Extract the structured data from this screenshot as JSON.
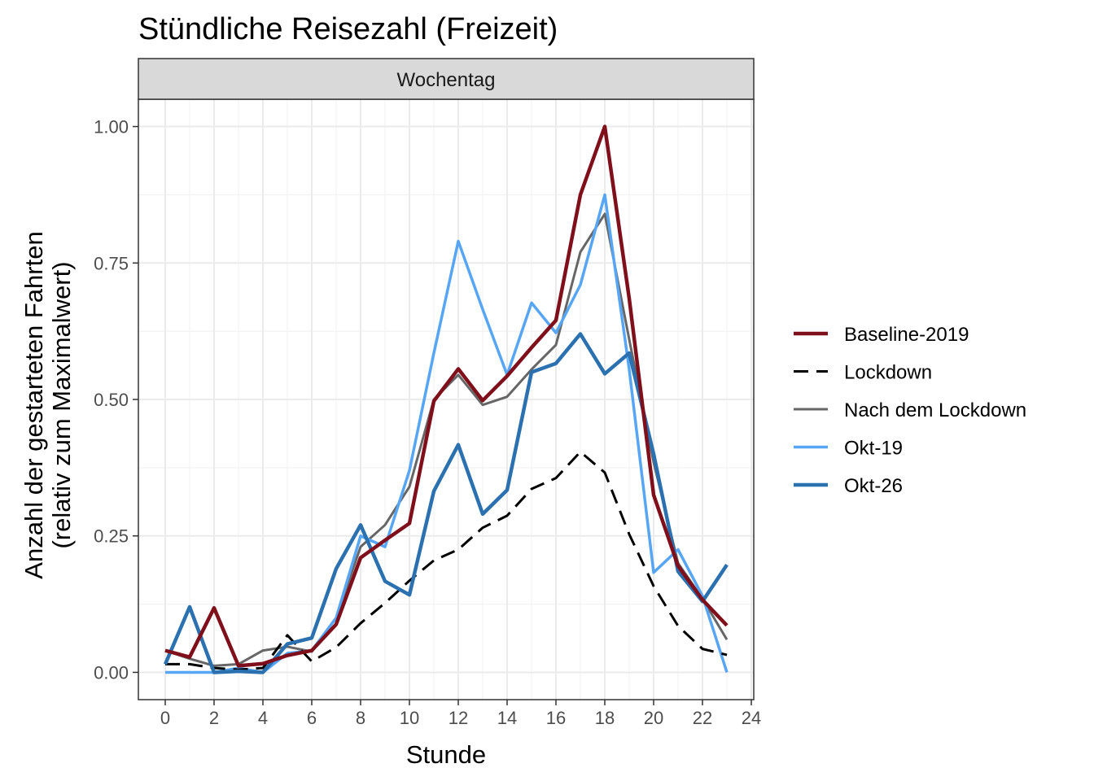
{
  "chart_data": {
    "type": "line",
    "title": "Stündliche Reisezahl (Freizeit)",
    "facet_label": "Wochentag",
    "xlabel": "Stunde",
    "ylabel_line1": "Anzahl der gestarteten Fahrten",
    "ylabel_line2": "(relativ zum Maximalwert)",
    "xlim": [
      -1.1,
      24.1
    ],
    "ylim": [
      -0.05,
      1.05
    ],
    "x_ticks": [
      0,
      2,
      4,
      6,
      8,
      10,
      12,
      14,
      16,
      18,
      20,
      22,
      24
    ],
    "y_ticks": [
      0.0,
      0.25,
      0.5,
      0.75,
      1.0
    ],
    "y_tick_labels": [
      "0.00",
      "0.25",
      "0.50",
      "0.75",
      "1.00"
    ],
    "grid": true,
    "legend_position": "right",
    "x": [
      0,
      1,
      2,
      3,
      4,
      5,
      6,
      7,
      8,
      9,
      10,
      11,
      12,
      13,
      14,
      15,
      16,
      17,
      18,
      19,
      20,
      21,
      22,
      23
    ],
    "series": [
      {
        "name": "Nach dem Lockdown",
        "color": "#666666",
        "width": 3,
        "dash": "",
        "values": [
          0.04,
          0.025,
          0.012,
          0.015,
          0.04,
          0.047,
          0.038,
          0.1,
          0.23,
          0.27,
          0.34,
          0.5,
          0.545,
          0.49,
          0.505,
          0.555,
          0.6,
          0.77,
          0.84,
          0.61,
          0.385,
          0.2,
          0.135,
          0.06
        ]
      },
      {
        "name": "Okt-19",
        "color": "#56a6f5",
        "width": 3.5,
        "dash": "",
        "values": [
          0.0,
          0.0,
          0.0,
          0.008,
          0.0,
          0.035,
          0.04,
          0.1,
          0.25,
          0.23,
          0.37,
          0.585,
          0.79,
          0.665,
          0.545,
          0.677,
          0.622,
          0.71,
          0.875,
          0.555,
          0.183,
          0.225,
          0.14,
          0.0
        ]
      },
      {
        "name": "Lockdown",
        "color": "#000000",
        "width": 3,
        "dash": "18,10",
        "values": [
          0.015,
          0.015,
          0.008,
          0.005,
          0.008,
          0.068,
          0.02,
          0.046,
          0.09,
          0.127,
          0.168,
          0.205,
          0.225,
          0.265,
          0.287,
          0.336,
          0.356,
          0.404,
          0.366,
          0.253,
          0.158,
          0.085,
          0.043,
          0.032
        ]
      },
      {
        "name": "Okt-26",
        "color": "#2b71b0",
        "width": 4.5,
        "dash": "",
        "values": [
          0.015,
          0.12,
          0.0,
          0.002,
          0.0,
          0.052,
          0.063,
          0.19,
          0.27,
          0.167,
          0.142,
          0.332,
          0.417,
          0.29,
          0.334,
          0.55,
          0.566,
          0.62,
          0.547,
          0.585,
          0.4,
          0.185,
          0.13,
          0.197
        ]
      },
      {
        "name": "Baseline-2019",
        "color": "#7f0f1a",
        "width": 4.5,
        "dash": "",
        "values": [
          0.04,
          0.028,
          0.118,
          0.012,
          0.016,
          0.031,
          0.04,
          0.088,
          0.21,
          0.242,
          0.273,
          0.497,
          0.556,
          0.498,
          0.543,
          0.595,
          0.645,
          0.875,
          1.0,
          0.685,
          0.325,
          0.195,
          0.133,
          0.086
        ]
      }
    ],
    "legend_order": [
      "Baseline-2019",
      "Lockdown",
      "Nach dem Lockdown",
      "Okt-19",
      "Okt-26"
    ]
  }
}
